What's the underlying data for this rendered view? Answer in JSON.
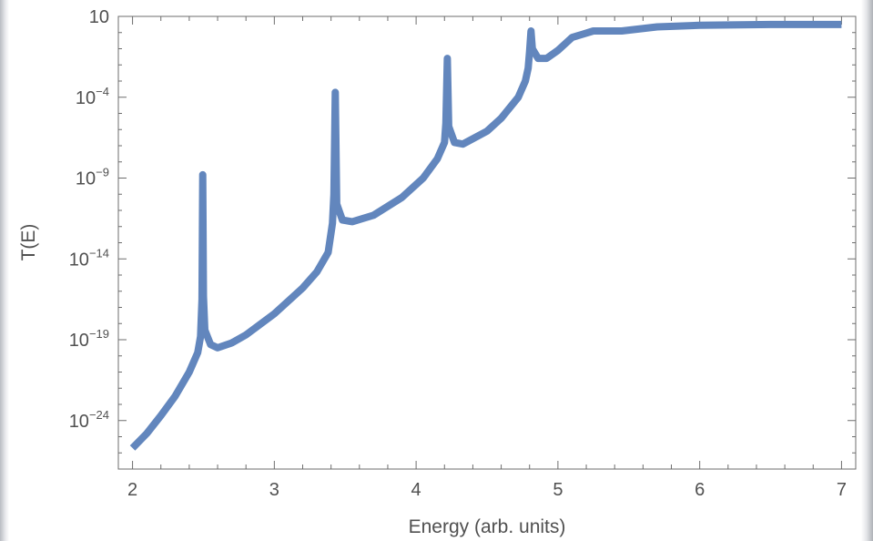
{
  "chart_data": {
    "type": "line",
    "title": "",
    "xlabel": "Energy (arb. units)",
    "ylabel": "T(E)",
    "xlim": [
      1.9,
      7.1
    ],
    "ylim_log10": [
      -27,
      1
    ],
    "y_scale": "log",
    "grid": false,
    "line_color": "#6286bd",
    "frame_color": "#6d6d6d",
    "x_ticks": [
      {
        "value": 2,
        "label": "2"
      },
      {
        "value": 3,
        "label": "3"
      },
      {
        "value": 4,
        "label": "4"
      },
      {
        "value": 5,
        "label": "5"
      },
      {
        "value": 6,
        "label": "6"
      },
      {
        "value": 7,
        "label": "7"
      }
    ],
    "y_ticks": [
      {
        "log10": 1,
        "base": "10",
        "exp": ""
      },
      {
        "log10": -4,
        "base": "10",
        "exp": "−4"
      },
      {
        "log10": -9,
        "base": "10",
        "exp": "−9"
      },
      {
        "log10": -14,
        "base": "10",
        "exp": "−14"
      },
      {
        "log10": -19,
        "base": "10",
        "exp": "−19"
      },
      {
        "log10": -24,
        "base": "10",
        "exp": "−24"
      }
    ],
    "series": [
      {
        "points_log10": [
          [
            2.0,
            -25.7
          ],
          [
            2.1,
            -24.8
          ],
          [
            2.2,
            -23.7
          ],
          [
            2.3,
            -22.5
          ],
          [
            2.4,
            -21.0
          ],
          [
            2.46,
            -19.8
          ],
          [
            2.48,
            -18.8
          ],
          [
            2.49,
            -16.5
          ],
          [
            2.495,
            -8.8
          ],
          [
            2.5,
            -16.3
          ],
          [
            2.51,
            -18.4
          ],
          [
            2.55,
            -19.3
          ],
          [
            2.6,
            -19.5
          ],
          [
            2.7,
            -19.2
          ],
          [
            2.8,
            -18.7
          ],
          [
            3.0,
            -17.4
          ],
          [
            3.2,
            -15.8
          ],
          [
            3.3,
            -14.8
          ],
          [
            3.38,
            -13.6
          ],
          [
            3.41,
            -11.8
          ],
          [
            3.42,
            -10.0
          ],
          [
            3.43,
            -3.7
          ],
          [
            3.44,
            -10.6
          ],
          [
            3.48,
            -11.6
          ],
          [
            3.55,
            -11.7
          ],
          [
            3.7,
            -11.3
          ],
          [
            3.9,
            -10.2
          ],
          [
            4.05,
            -9.0
          ],
          [
            4.15,
            -7.8
          ],
          [
            4.2,
            -6.8
          ],
          [
            4.21,
            -5.6
          ],
          [
            4.22,
            -1.6
          ],
          [
            4.23,
            -5.8
          ],
          [
            4.27,
            -6.8
          ],
          [
            4.33,
            -6.9
          ],
          [
            4.5,
            -6.1
          ],
          [
            4.6,
            -5.3
          ],
          [
            4.72,
            -4.0
          ],
          [
            4.77,
            -3.0
          ],
          [
            4.79,
            -2.2
          ],
          [
            4.8,
            -1.2
          ],
          [
            4.81,
            0.1
          ],
          [
            4.82,
            -1.0
          ],
          [
            4.86,
            -1.6
          ],
          [
            4.92,
            -1.6
          ],
          [
            5.0,
            -1.1
          ],
          [
            5.1,
            -0.3
          ],
          [
            5.25,
            0.1
          ],
          [
            5.45,
            0.1
          ],
          [
            5.7,
            0.35
          ],
          [
            6.0,
            0.45
          ],
          [
            6.5,
            0.5
          ],
          [
            7.0,
            0.5
          ]
        ]
      }
    ]
  }
}
